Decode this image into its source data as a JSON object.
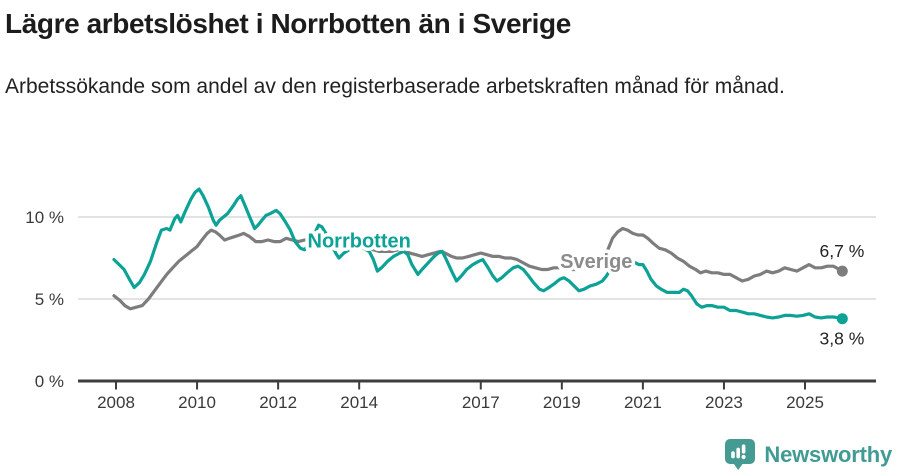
{
  "header": {
    "title": "Lägre arbetslöshet i Norrbotten än i Sverige",
    "subtitle": "Arbetssökande som andel av den registerbaserade arbetskraften månad för månad."
  },
  "brand": {
    "name": "Newsworthy"
  },
  "chart_data": {
    "type": "line",
    "title": "Lägre arbetslöshet i Norrbotten än i Sverige",
    "unit": "%",
    "grid": true,
    "legend_position": "inline-labels",
    "x_axis": {
      "ticks": [
        2008,
        2010,
        2012,
        2014,
        2017,
        2019,
        2021,
        2023,
        2025
      ]
    },
    "y_axis": {
      "ticks": [
        0,
        5,
        10
      ],
      "tick_labels": [
        "0 %",
        "5 %",
        "10 %"
      ],
      "ylim": [
        0,
        12.5
      ]
    },
    "style": {
      "grid_color": "#d9d9d9",
      "axis_color": "#3d3d3d",
      "teal": "#0ca296",
      "gray": "#7d7d7d"
    },
    "series": [
      {
        "name": "Sverige",
        "color": "#7d7d7d",
        "label_color": "#8c8c8c",
        "end_label": "6,7 %",
        "end_value": 6.7,
        "end_label_position": "above",
        "annotation": {
          "year": 2019.85,
          "value": 6.9
        },
        "points": [
          [
            2007.95,
            5.2
          ],
          [
            2008.1,
            4.9
          ],
          [
            2008.22,
            4.6
          ],
          [
            2008.35,
            4.4
          ],
          [
            2008.5,
            4.5
          ],
          [
            2008.65,
            4.6
          ],
          [
            2008.8,
            5.0
          ],
          [
            2008.95,
            5.5
          ],
          [
            2009.1,
            6.0
          ],
          [
            2009.25,
            6.5
          ],
          [
            2009.4,
            6.9
          ],
          [
            2009.55,
            7.3
          ],
          [
            2009.7,
            7.6
          ],
          [
            2009.85,
            7.9
          ],
          [
            2010.0,
            8.2
          ],
          [
            2010.12,
            8.6
          ],
          [
            2010.25,
            9.0
          ],
          [
            2010.35,
            9.2
          ],
          [
            2010.45,
            9.1
          ],
          [
            2010.55,
            8.9
          ],
          [
            2010.68,
            8.6
          ],
          [
            2010.8,
            8.7
          ],
          [
            2010.92,
            8.8
          ],
          [
            2011.05,
            8.9
          ],
          [
            2011.15,
            9.0
          ],
          [
            2011.3,
            8.8
          ],
          [
            2011.45,
            8.5
          ],
          [
            2011.6,
            8.5
          ],
          [
            2011.75,
            8.6
          ],
          [
            2011.9,
            8.5
          ],
          [
            2012.05,
            8.5
          ],
          [
            2012.2,
            8.7
          ],
          [
            2012.35,
            8.6
          ],
          [
            2012.5,
            8.5
          ],
          [
            2012.65,
            8.6
          ],
          [
            2012.8,
            8.6
          ],
          [
            2012.95,
            8.7
          ],
          [
            2013.1,
            8.6
          ],
          [
            2013.3,
            8.5
          ],
          [
            2013.5,
            8.4
          ],
          [
            2013.7,
            8.4
          ],
          [
            2013.9,
            8.3
          ],
          [
            2014.05,
            8.2
          ],
          [
            2014.2,
            8.1
          ],
          [
            2014.35,
            8.0
          ],
          [
            2014.5,
            7.9
          ],
          [
            2014.65,
            7.9
          ],
          [
            2014.8,
            7.9
          ],
          [
            2014.95,
            8.0
          ],
          [
            2015.1,
            8.0
          ],
          [
            2015.25,
            7.8
          ],
          [
            2015.4,
            7.7
          ],
          [
            2015.55,
            7.6
          ],
          [
            2015.7,
            7.7
          ],
          [
            2015.85,
            7.8
          ],
          [
            2016.0,
            7.9
          ],
          [
            2016.12,
            7.8
          ],
          [
            2016.28,
            7.6
          ],
          [
            2016.4,
            7.5
          ],
          [
            2016.55,
            7.5
          ],
          [
            2016.7,
            7.6
          ],
          [
            2016.85,
            7.7
          ],
          [
            2017.0,
            7.8
          ],
          [
            2017.15,
            7.7
          ],
          [
            2017.3,
            7.6
          ],
          [
            2017.45,
            7.6
          ],
          [
            2017.6,
            7.5
          ],
          [
            2017.75,
            7.5
          ],
          [
            2017.9,
            7.4
          ],
          [
            2018.05,
            7.2
          ],
          [
            2018.2,
            7.0
          ],
          [
            2018.35,
            6.9
          ],
          [
            2018.5,
            6.8
          ],
          [
            2018.65,
            6.8
          ],
          [
            2018.8,
            6.9
          ],
          [
            2018.95,
            6.9
          ],
          [
            2019.1,
            6.9
          ],
          [
            2019.25,
            6.8
          ],
          [
            2019.4,
            6.8
          ],
          [
            2019.55,
            6.9
          ],
          [
            2019.7,
            7.0
          ],
          [
            2019.85,
            7.2
          ],
          [
            2020.0,
            7.5
          ],
          [
            2020.12,
            7.9
          ],
          [
            2020.25,
            8.7
          ],
          [
            2020.38,
            9.1
          ],
          [
            2020.5,
            9.3
          ],
          [
            2020.62,
            9.2
          ],
          [
            2020.75,
            9.0
          ],
          [
            2020.88,
            8.9
          ],
          [
            2021.0,
            8.9
          ],
          [
            2021.12,
            8.7
          ],
          [
            2021.25,
            8.4
          ],
          [
            2021.4,
            8.1
          ],
          [
            2021.55,
            8.0
          ],
          [
            2021.7,
            7.8
          ],
          [
            2021.85,
            7.5
          ],
          [
            2022.0,
            7.3
          ],
          [
            2022.15,
            7.0
          ],
          [
            2022.3,
            6.8
          ],
          [
            2022.42,
            6.6
          ],
          [
            2022.55,
            6.7
          ],
          [
            2022.7,
            6.6
          ],
          [
            2022.85,
            6.6
          ],
          [
            2023.0,
            6.5
          ],
          [
            2023.15,
            6.5
          ],
          [
            2023.3,
            6.3
          ],
          [
            2023.45,
            6.1
          ],
          [
            2023.6,
            6.2
          ],
          [
            2023.75,
            6.4
          ],
          [
            2023.9,
            6.5
          ],
          [
            2024.05,
            6.7
          ],
          [
            2024.2,
            6.6
          ],
          [
            2024.35,
            6.7
          ],
          [
            2024.5,
            6.9
          ],
          [
            2024.65,
            6.8
          ],
          [
            2024.8,
            6.7
          ],
          [
            2024.95,
            6.9
          ],
          [
            2025.1,
            7.1
          ],
          [
            2025.25,
            6.9
          ],
          [
            2025.4,
            6.9
          ],
          [
            2025.55,
            7.0
          ],
          [
            2025.7,
            7.0
          ],
          [
            2025.85,
            6.8
          ],
          [
            2025.92,
            6.7
          ]
        ]
      },
      {
        "name": "Norrbotten",
        "color": "#0ca296",
        "label_color": "#0ca296",
        "end_label": "3,8 %",
        "end_value": 3.8,
        "end_label_position": "below",
        "annotation": {
          "year": 2014.0,
          "value": 8.15
        },
        "points": [
          [
            2007.95,
            7.4
          ],
          [
            2008.08,
            7.1
          ],
          [
            2008.2,
            6.8
          ],
          [
            2008.33,
            6.2
          ],
          [
            2008.45,
            5.7
          ],
          [
            2008.58,
            6.0
          ],
          [
            2008.7,
            6.5
          ],
          [
            2008.85,
            7.3
          ],
          [
            2009.0,
            8.4
          ],
          [
            2009.12,
            9.2
          ],
          [
            2009.25,
            9.3
          ],
          [
            2009.33,
            9.2
          ],
          [
            2009.45,
            9.9
          ],
          [
            2009.52,
            10.1
          ],
          [
            2009.6,
            9.7
          ],
          [
            2009.7,
            10.3
          ],
          [
            2009.85,
            11.1
          ],
          [
            2009.95,
            11.5
          ],
          [
            2010.05,
            11.7
          ],
          [
            2010.15,
            11.3
          ],
          [
            2010.28,
            10.6
          ],
          [
            2010.4,
            9.8
          ],
          [
            2010.47,
            9.5
          ],
          [
            2010.55,
            9.8
          ],
          [
            2010.65,
            10.0
          ],
          [
            2010.75,
            10.2
          ],
          [
            2010.9,
            10.7
          ],
          [
            2011.0,
            11.1
          ],
          [
            2011.08,
            11.3
          ],
          [
            2011.2,
            10.6
          ],
          [
            2011.3,
            10.0
          ],
          [
            2011.42,
            9.3
          ],
          [
            2011.5,
            9.5
          ],
          [
            2011.6,
            9.8
          ],
          [
            2011.7,
            10.1
          ],
          [
            2011.8,
            10.2
          ],
          [
            2011.95,
            10.4
          ],
          [
            2012.05,
            10.2
          ],
          [
            2012.18,
            9.7
          ],
          [
            2012.3,
            9.2
          ],
          [
            2012.42,
            8.5
          ],
          [
            2012.55,
            8.1
          ],
          [
            2012.65,
            8.0
          ],
          [
            2012.78,
            8.4
          ],
          [
            2012.9,
            9.0
          ],
          [
            2013.0,
            9.5
          ],
          [
            2013.08,
            9.4
          ],
          [
            2013.2,
            8.9
          ],
          [
            2013.3,
            8.4
          ],
          [
            2013.42,
            7.8
          ],
          [
            2013.5,
            7.5
          ],
          [
            2013.62,
            7.8
          ],
          [
            2013.75,
            8.0
          ],
          [
            2013.9,
            8.2
          ],
          [
            2014.0,
            8.3
          ],
          [
            2014.1,
            8.1
          ],
          [
            2014.25,
            7.9
          ],
          [
            2014.35,
            7.4
          ],
          [
            2014.45,
            6.7
          ],
          [
            2014.55,
            6.9
          ],
          [
            2014.7,
            7.3
          ],
          [
            2014.85,
            7.6
          ],
          [
            2015.0,
            7.8
          ],
          [
            2015.1,
            7.9
          ],
          [
            2015.2,
            7.7
          ],
          [
            2015.3,
            7.1
          ],
          [
            2015.45,
            6.5
          ],
          [
            2015.55,
            6.8
          ],
          [
            2015.7,
            7.2
          ],
          [
            2015.85,
            7.6
          ],
          [
            2015.95,
            7.8
          ],
          [
            2016.05,
            7.9
          ],
          [
            2016.15,
            7.4
          ],
          [
            2016.28,
            6.7
          ],
          [
            2016.4,
            6.1
          ],
          [
            2016.52,
            6.4
          ],
          [
            2016.65,
            6.8
          ],
          [
            2016.8,
            7.1
          ],
          [
            2016.95,
            7.3
          ],
          [
            2017.05,
            7.4
          ],
          [
            2017.18,
            6.9
          ],
          [
            2017.3,
            6.4
          ],
          [
            2017.4,
            6.1
          ],
          [
            2017.52,
            6.3
          ],
          [
            2017.65,
            6.6
          ],
          [
            2017.8,
            6.9
          ],
          [
            2017.92,
            7.0
          ],
          [
            2018.05,
            6.8
          ],
          [
            2018.18,
            6.4
          ],
          [
            2018.3,
            6.0
          ],
          [
            2018.45,
            5.6
          ],
          [
            2018.55,
            5.5
          ],
          [
            2018.68,
            5.7
          ],
          [
            2018.8,
            5.9
          ],
          [
            2018.95,
            6.2
          ],
          [
            2019.05,
            6.3
          ],
          [
            2019.18,
            6.1
          ],
          [
            2019.3,
            5.8
          ],
          [
            2019.42,
            5.5
          ],
          [
            2019.55,
            5.6
          ],
          [
            2019.7,
            5.8
          ],
          [
            2019.85,
            5.9
          ],
          [
            2020.0,
            6.1
          ],
          [
            2020.1,
            6.4
          ],
          [
            2020.2,
            6.8
          ],
          [
            2020.33,
            7.2
          ],
          [
            2020.45,
            7.4
          ],
          [
            2020.6,
            7.4
          ],
          [
            2020.75,
            7.3
          ],
          [
            2020.9,
            7.1
          ],
          [
            2021.0,
            7.1
          ],
          [
            2021.1,
            6.7
          ],
          [
            2021.2,
            6.2
          ],
          [
            2021.33,
            5.8
          ],
          [
            2021.45,
            5.6
          ],
          [
            2021.6,
            5.4
          ],
          [
            2021.75,
            5.4
          ],
          [
            2021.9,
            5.4
          ],
          [
            2022.0,
            5.6
          ],
          [
            2022.1,
            5.5
          ],
          [
            2022.2,
            5.2
          ],
          [
            2022.33,
            4.7
          ],
          [
            2022.45,
            4.5
          ],
          [
            2022.58,
            4.6
          ],
          [
            2022.7,
            4.6
          ],
          [
            2022.85,
            4.5
          ],
          [
            2023.0,
            4.5
          ],
          [
            2023.15,
            4.3
          ],
          [
            2023.3,
            4.3
          ],
          [
            2023.45,
            4.2
          ],
          [
            2023.6,
            4.1
          ],
          [
            2023.75,
            4.1
          ],
          [
            2023.9,
            4.0
          ],
          [
            2024.05,
            3.9
          ],
          [
            2024.2,
            3.85
          ],
          [
            2024.35,
            3.9
          ],
          [
            2024.5,
            4.0
          ],
          [
            2024.65,
            4.0
          ],
          [
            2024.8,
            3.95
          ],
          [
            2024.95,
            4.0
          ],
          [
            2025.1,
            4.1
          ],
          [
            2025.25,
            3.9
          ],
          [
            2025.4,
            3.85
          ],
          [
            2025.55,
            3.9
          ],
          [
            2025.7,
            3.9
          ],
          [
            2025.85,
            3.85
          ],
          [
            2025.92,
            3.8
          ]
        ]
      }
    ]
  }
}
